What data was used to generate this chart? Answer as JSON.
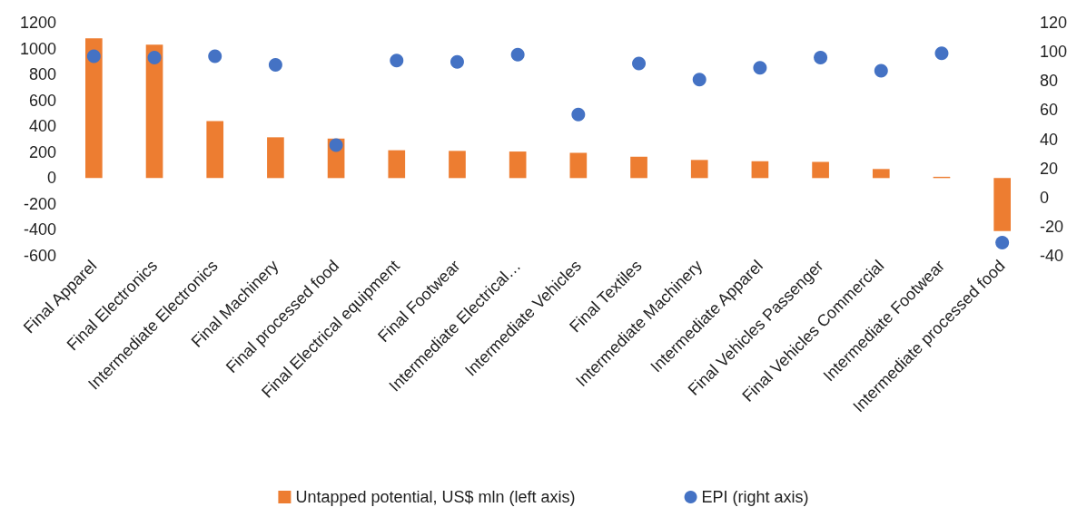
{
  "chart_data": {
    "type": "bar",
    "categories": [
      "Final Apparel",
      "Final Electronics",
      "Intermediate Electronics",
      "Final Machinery",
      "Final processed food",
      "Final Electrical equipment",
      "Final Footwear",
      "Intermediate Electrical…",
      "Intermediate Vehicles",
      "Final Textiles",
      "Intermediate Machinery",
      "Intermediate Apparel",
      "Final Vehicles Passenger",
      "Final Vehicles Commercial",
      "Intermediate Footwear",
      "Intermediate processed food"
    ],
    "series": [
      {
        "name": "Untapped potential, US$ mln (left axis)",
        "type": "bar",
        "color": "#ed7d31",
        "values": [
          1080,
          1030,
          440,
          315,
          305,
          215,
          210,
          205,
          195,
          165,
          140,
          130,
          125,
          70,
          10,
          -410
        ]
      },
      {
        "name": "EPI (right axis)",
        "type": "scatter",
        "axis": "y2",
        "color": "#4472c4",
        "marker": "circle",
        "x": [
          "Final Apparel",
          "Final Electronics",
          "Intermediate Electronics",
          "Final Machinery",
          "Final processed food",
          "Final Electrical equipment",
          "Final Footwear",
          "Intermediate Electrical…",
          "Intermediate Vehicles",
          "Final Textiles",
          "Intermediate Machinery",
          "Intermediate Apparel",
          "Final Vehicles Passenger",
          "Final Vehicles Commercial",
          "Intermediate Footwear",
          "Intermediate processed food"
        ],
        "values": [
          97,
          96,
          97,
          91,
          36,
          94,
          93,
          98,
          57,
          92,
          81,
          89,
          96,
          87,
          99,
          -31
        ]
      }
    ],
    "ylim": [
      -600,
      1200
    ],
    "yticks": [
      -600,
      -400,
      -200,
      0,
      200,
      400,
      600,
      800,
      {
        "value": 1000,
        "label": "1000"
      },
      {
        "value": 1200,
        "label": "1200"
      }
    ],
    "y2lim": [
      -40,
      120
    ],
    "y2ticks": [
      -40,
      -20,
      0,
      20,
      40,
      60,
      80,
      100,
      120
    ],
    "grid": false,
    "legend": "bottom"
  }
}
